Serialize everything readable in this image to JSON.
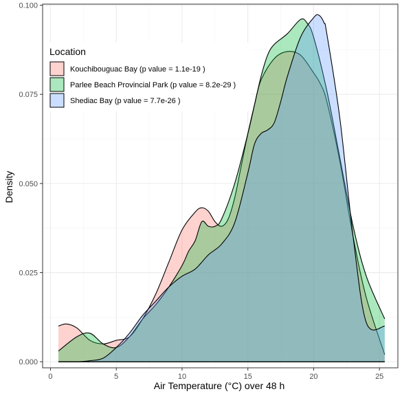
{
  "chart_data": {
    "type": "area",
    "subtype": "density",
    "xlabel": "Air Temperature (°C) over 48 h",
    "ylabel": "Density",
    "xlim": [
      -0.6,
      26.4
    ],
    "ylim": [
      -0.0017,
      0.1003
    ],
    "x_ticks": [
      0,
      5,
      10,
      15,
      20,
      25
    ],
    "x_tick_labels": [
      "0",
      "5",
      "10",
      "15",
      "20",
      "25"
    ],
    "y_ticks": [
      0,
      0.025,
      0.05,
      0.075,
      0.1
    ],
    "y_tick_labels": [
      "0.000",
      "0.025",
      "0.050",
      "0.075",
      "0.100"
    ],
    "grid": true,
    "legend": {
      "title": "Location",
      "position": "top-left",
      "entries": [
        "Kouchibouguac Bay (p value = 1.1e-19 )",
        "Parlee Beach Provincial Park (p value = 8.2e-29 )",
        "Shediac Bay (p value = 7.7e-26 )"
      ]
    },
    "colors": {
      "kouchibouguac": "#F8766D",
      "parlee": "#00BA38",
      "shediac": "#619CFF",
      "outline": "#000000",
      "panel_border": "#333333",
      "grid_major": "#ebebeb",
      "grid_minor": "#f5f5f5"
    },
    "fill_opacity": 0.33,
    "series": [
      {
        "name": "Kouchibouguac Bay (p value = 1.1e-19 )",
        "color": "#F8766D",
        "x": [
          0.6,
          1.2,
          2.0,
          3.0,
          4.0,
          5.0,
          6.0,
          7.0,
          8.0,
          9.0,
          10.0,
          11.0,
          11.5,
          12.0,
          12.5,
          13.0,
          13.5,
          14.0,
          14.5,
          15.0,
          15.5,
          16.0,
          17.0,
          18.0,
          19.0,
          20.0,
          20.5,
          21.0,
          22.0,
          23.0,
          24.0,
          25.4
        ],
        "y": [
          0.01,
          0.0106,
          0.0095,
          0.006,
          0.005,
          0.006,
          0.007,
          0.012,
          0.019,
          0.028,
          0.037,
          0.042,
          0.0432,
          0.0422,
          0.0393,
          0.038,
          0.04,
          0.046,
          0.055,
          0.064,
          0.072,
          0.079,
          0.085,
          0.087,
          0.086,
          0.081,
          0.078,
          0.073,
          0.056,
          0.035,
          0.018,
          0.002
        ]
      },
      {
        "name": "Parlee Beach Provincial Park (p value = 8.2e-29 )",
        "color": "#00BA38",
        "x": [
          0.6,
          2.0,
          3.0,
          4.0,
          5.0,
          6.0,
          7.0,
          8.0,
          9.0,
          10.0,
          10.5,
          11.0,
          11.5,
          12.0,
          12.5,
          13.0,
          14.0,
          15.0,
          15.5,
          16.0,
          16.5,
          17.0,
          18.0,
          19.0,
          19.5,
          20.0,
          21.0,
          22.0,
          23.0,
          24.0,
          25.4
        ],
        "y": [
          0.003,
          0.007,
          0.008,
          0.005,
          0.004,
          0.007,
          0.012,
          0.016,
          0.021,
          0.027,
          0.031,
          0.034,
          0.0393,
          0.038,
          0.038,
          0.04,
          0.05,
          0.064,
          0.072,
          0.08,
          0.086,
          0.089,
          0.092,
          0.096,
          0.095,
          0.091,
          0.076,
          0.057,
          0.038,
          0.024,
          0.012
        ]
      },
      {
        "name": "Shediac Bay (p value = 7.7e-26 )",
        "color": "#619CFF",
        "x": [
          0.6,
          2.0,
          3.0,
          4.0,
          5.0,
          6.0,
          7.0,
          8.0,
          9.0,
          10.0,
          11.0,
          12.0,
          13.0,
          14.0,
          15.0,
          15.5,
          16.0,
          16.5,
          17.0,
          17.5,
          18.0,
          19.0,
          20.0,
          20.4,
          20.8,
          21.0,
          22.0,
          23.0,
          24.0,
          25.4
        ],
        "y": [
          0.0,
          0.0,
          0.0003,
          0.001,
          0.004,
          0.008,
          0.013,
          0.017,
          0.021,
          0.024,
          0.026,
          0.03,
          0.033,
          0.039,
          0.053,
          0.061,
          0.064,
          0.065,
          0.067,
          0.073,
          0.08,
          0.091,
          0.0965,
          0.0972,
          0.095,
          0.092,
          0.068,
          0.035,
          0.011,
          0.01
        ]
      }
    ]
  }
}
